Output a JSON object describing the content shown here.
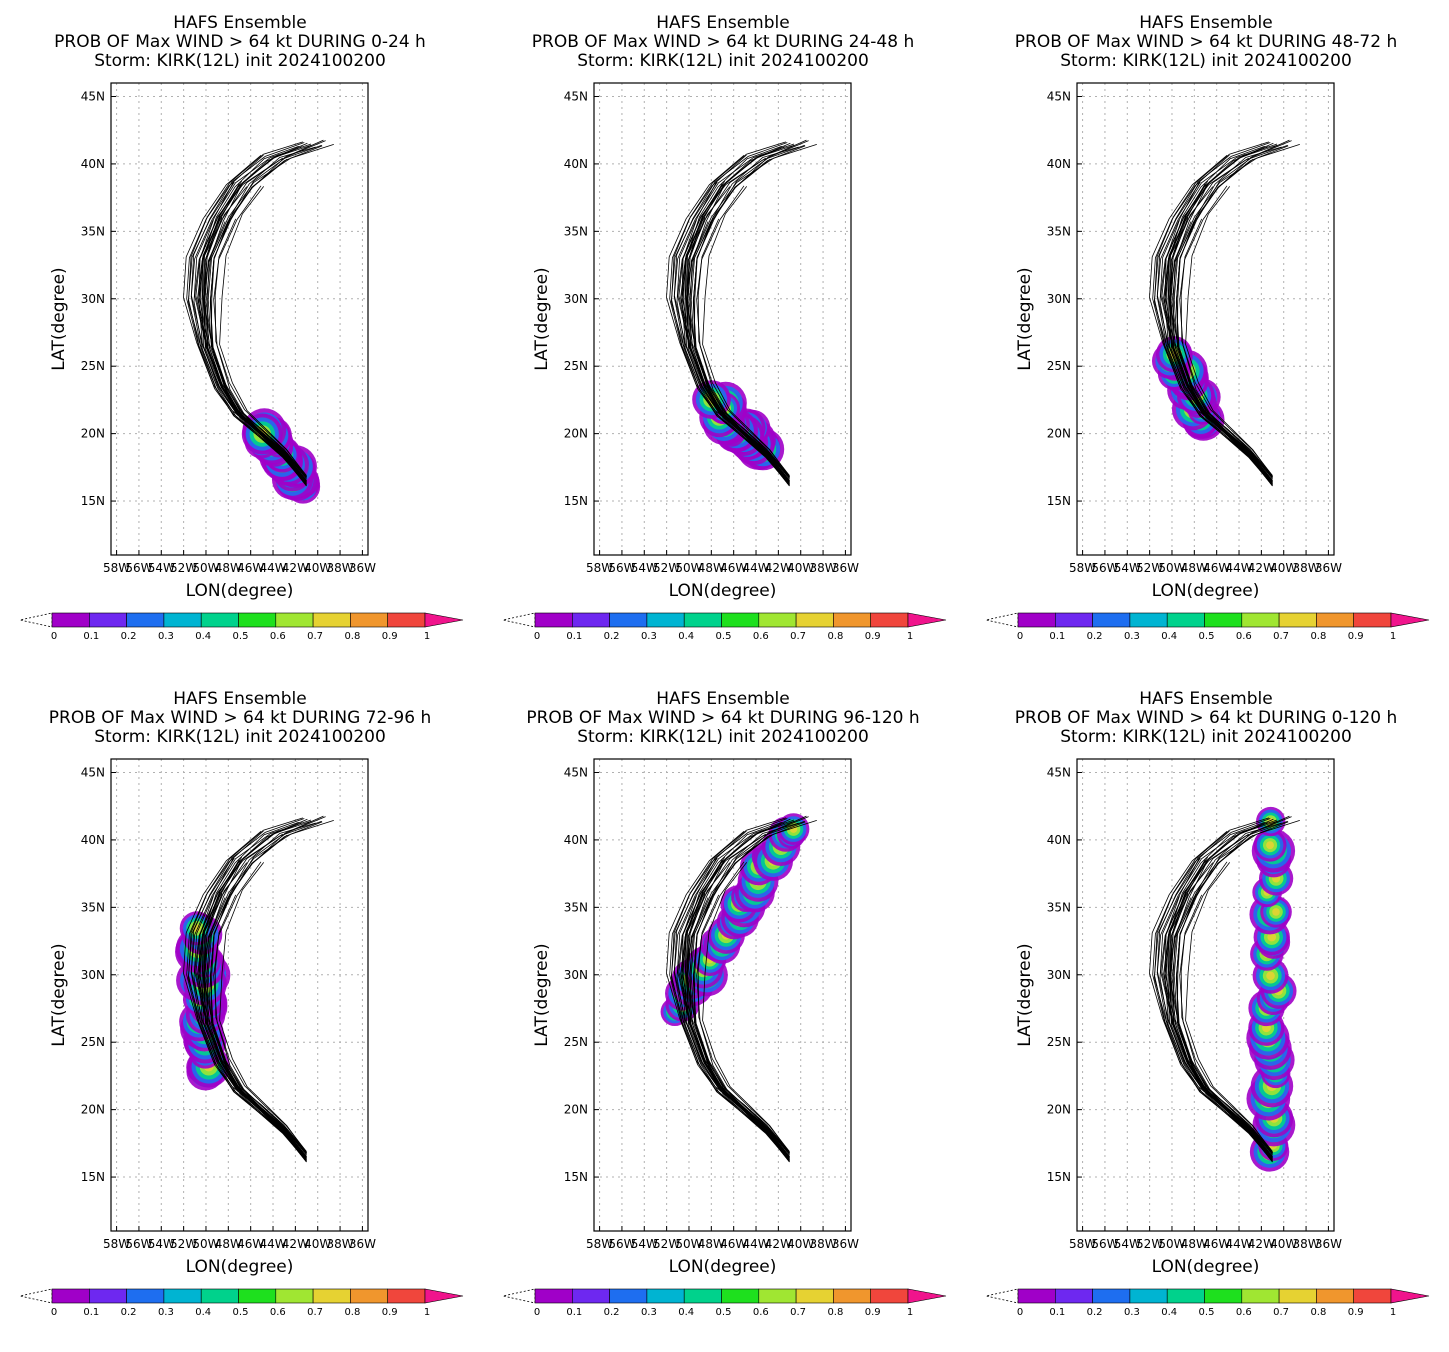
{
  "colorbar": {
    "colors": [
      "#a000c8",
      "#6e28f0",
      "#1e6ef0",
      "#00b4d2",
      "#00d28c",
      "#1ee01e",
      "#a0e632",
      "#e6d232",
      "#f0962d",
      "#f0463c"
    ],
    "over_color": "#f0148c",
    "labels": [
      "0",
      "0.1",
      "0.2",
      "0.3",
      "0.4",
      "0.5",
      "0.6",
      "0.7",
      "0.8",
      "0.9",
      "1"
    ]
  },
  "axes": {
    "ylabel": "LAT(degree)",
    "xlabel": "LON(degree)",
    "yticks": [
      "15N",
      "20N",
      "25N",
      "30N",
      "35N",
      "40N",
      "45N"
    ],
    "xticks": [
      "58W",
      "56W",
      "54W",
      "52W",
      "50W",
      "48W",
      "46W",
      "44W",
      "42W",
      "40W",
      "38W",
      "36W"
    ],
    "track_color": "#000000",
    "grid_color": "#b0b0b0"
  },
  "chart_data": [
    {
      "type": "heatmap",
      "title": "HAFS Ensemble",
      "subtitle": "PROB OF Max WIND > 64 kt DURING  0-24 h",
      "storm_line": "Storm: KIRK(12L) init 2024100200",
      "xlabel": "LON(degree)",
      "ylabel": "LAT(degree)",
      "xlim_lon_east": [
        -58.5,
        -35.5
      ],
      "ylim_lat": [
        11,
        46
      ],
      "prob_max": 0.8,
      "track_points": [
        [
          -41,
          16.5
        ],
        [
          -45,
          20
        ]
      ]
    },
    {
      "type": "heatmap",
      "title": "HAFS Ensemble",
      "subtitle": "PROB OF Max WIND > 64 kt DURING 24-48 h",
      "storm_line": "Storm: KIRK(12L) init 2024100200",
      "xlabel": "LON(degree)",
      "ylabel": "LAT(degree)",
      "xlim_lon_east": [
        -58.5,
        -35.5
      ],
      "ylim_lat": [
        11,
        46
      ],
      "prob_max": 0.8,
      "track_points": [
        [
          -43.5,
          19
        ],
        [
          -47.5,
          22
        ]
      ]
    },
    {
      "type": "heatmap",
      "title": "HAFS Ensemble",
      "subtitle": "PROB OF Max WIND > 64 kt DURING 48-72 h",
      "storm_line": "Storm: KIRK(12L) init 2024100200",
      "xlabel": "LON(degree)",
      "ylabel": "LAT(degree)",
      "xlim_lon_east": [
        -58.5,
        -35.5
      ],
      "ylim_lat": [
        11,
        46
      ],
      "prob_max": 0.8,
      "track_points": [
        [
          -47,
          21
        ],
        [
          -50,
          26
        ]
      ]
    },
    {
      "type": "heatmap",
      "title": "HAFS Ensemble",
      "subtitle": "PROB OF Max WIND > 64 kt DURING 72-96 h",
      "storm_line": "Storm: KIRK(12L) init 2024100200",
      "xlabel": "LON(degree)",
      "ylabel": "LAT(degree)",
      "xlim_lon_east": [
        -58.5,
        -35.5
      ],
      "ylim_lat": [
        11,
        46
      ],
      "prob_max": 0.8,
      "track_points": [
        [
          -50,
          23
        ],
        [
          -50.5,
          33
        ]
      ]
    },
    {
      "type": "heatmap",
      "title": "HAFS Ensemble",
      "subtitle": "PROB OF Max WIND > 64 kt DURING 96-120 h",
      "storm_line": "Storm: KIRK(12L) init 2024100200",
      "xlabel": "LON(degree)",
      "ylabel": "LAT(degree)",
      "xlim_lon_east": [
        -58.5,
        -35.5
      ],
      "ylim_lat": [
        11,
        46
      ],
      "prob_max": 0.8,
      "track_points": [
        [
          -51,
          27
        ],
        [
          -41,
          41
        ]
      ]
    },
    {
      "type": "heatmap",
      "title": "HAFS Ensemble",
      "subtitle": "PROB OF Max WIND > 64 kt DURING 0-120 h",
      "storm_line": "Storm: KIRK(12L) init 2024100200",
      "xlabel": "LON(degree)",
      "ylabel": "LAT(degree)",
      "xlim_lon_east": [
        -58.5,
        -35.5
      ],
      "ylim_lat": [
        11,
        46
      ],
      "prob_max": 0.8,
      "track_points": [
        [
          -41,
          16.5
        ],
        [
          -41,
          41
        ]
      ]
    }
  ]
}
